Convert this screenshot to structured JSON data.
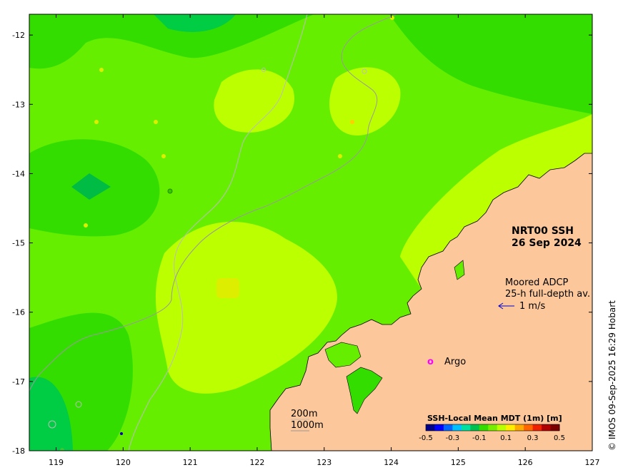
{
  "map": {
    "title": "NRT00 SSH",
    "date": "26 Sep 2024",
    "x_ticks": [
      "119",
      "120",
      "121",
      "122",
      "123",
      "124",
      "125",
      "126",
      "127"
    ],
    "y_ticks": [
      "-12",
      "-13",
      "-14",
      "-15",
      "-16",
      "-17",
      "-18"
    ],
    "lon_range": [
      118.6,
      127.0
    ],
    "lat_range": [
      -18.0,
      -11.7
    ]
  },
  "adcp": {
    "line1": "Moored ADCP",
    "line2": "25-h full-depth av.",
    "scale_label": "1 m/s",
    "arrow_color": "#0000cc"
  },
  "argo": {
    "symbol": "o",
    "label": "Argo",
    "color": "#ff00ff"
  },
  "isobaths": {
    "label_200": "200m",
    "label_1000": "1000m"
  },
  "colorbar": {
    "title": "SSH-Local Mean MDT (1m) [m]",
    "ticks": [
      "-0.5",
      "-0.3",
      "-0.1",
      "0.1",
      "0.3",
      "0.5"
    ],
    "colors": [
      "#00008b",
      "#0000ff",
      "#0066ff",
      "#00bfff",
      "#00e0a0",
      "#00c050",
      "#33dd00",
      "#77ee00",
      "#bbff00",
      "#ffee00",
      "#ffaa00",
      "#ff6600",
      "#ee2200",
      "#b00000",
      "#7a0000"
    ]
  },
  "land_color": "#fcc89b",
  "copyright": "© IMOS 09-Sep-2025 16:29 Hobart"
}
